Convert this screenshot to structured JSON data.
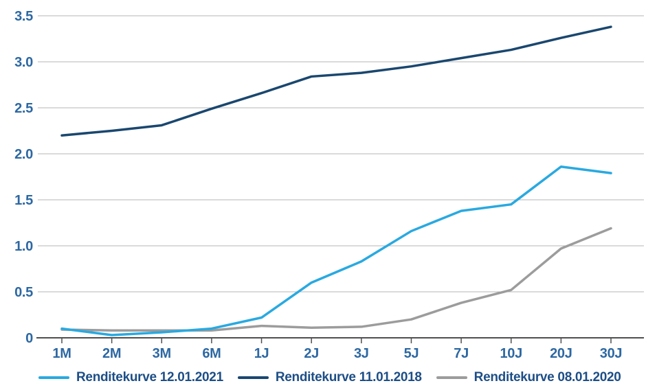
{
  "page": {
    "background": "#ffffff"
  },
  "colors": {
    "grid": "#b5b5b5",
    "axis": "#4f4f4f",
    "tick_label": "#2d68a2",
    "legend_label": "#1d4e86"
  },
  "chart_data": {
    "type": "line",
    "title": "",
    "xlabel": "",
    "ylabel": "",
    "grid": "horizontal",
    "legend_position": "bottom",
    "ylim": [
      0,
      3.5
    ],
    "categories": [
      "1M",
      "2M",
      "3M",
      "6M",
      "1J",
      "2J",
      "3J",
      "5J",
      "7J",
      "10J",
      "20J",
      "30J"
    ],
    "y_ticks": {
      "values": [
        0,
        0.5,
        1.0,
        1.5,
        2.0,
        2.5,
        3.0,
        3.5
      ],
      "labels": [
        "0",
        "0.5",
        "1.0",
        "1.5",
        "2.0",
        "2.5",
        "3.0",
        "3.5"
      ]
    },
    "series": [
      {
        "name": "Renditekurve 12.01.2021",
        "color": "#29a9e0",
        "values": [
          0.1,
          0.03,
          0.06,
          0.1,
          0.22,
          0.6,
          0.83,
          1.16,
          1.38,
          1.45,
          1.86,
          1.79
        ]
      },
      {
        "name": "Renditekurve 11.01.2018",
        "color": "#1a476f",
        "values": [
          2.2,
          2.25,
          2.31,
          2.49,
          2.66,
          2.84,
          2.88,
          2.95,
          3.04,
          3.13,
          3.26,
          3.38
        ]
      },
      {
        "name": "Renditekurve 08.01.2020",
        "color": "#9c9c9c",
        "values": [
          0.09,
          0.08,
          0.08,
          0.08,
          0.13,
          0.11,
          0.12,
          0.2,
          0.38,
          0.52,
          0.97,
          1.19
        ]
      }
    ],
    "draw_order": [
      1,
      2,
      0
    ]
  }
}
